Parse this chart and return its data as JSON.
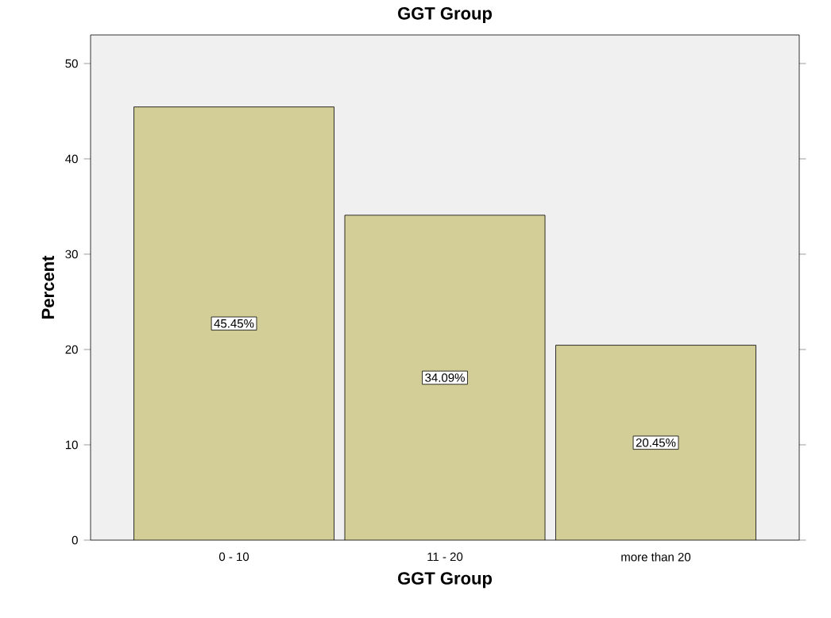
{
  "chart_data": {
    "type": "bar",
    "title": "GGT Group",
    "xlabel": "GGT Group",
    "ylabel": "Percent",
    "categories": [
      "0 - 10",
      "11 - 20",
      "more than 20"
    ],
    "values": [
      45.45,
      34.09,
      20.45
    ],
    "value_labels": [
      "45.45%",
      "34.09%",
      "20.45%"
    ],
    "color": "#d3ce97",
    "ylim": [
      0,
      53
    ],
    "yticks": [
      0,
      10,
      20,
      30,
      40,
      50
    ]
  }
}
